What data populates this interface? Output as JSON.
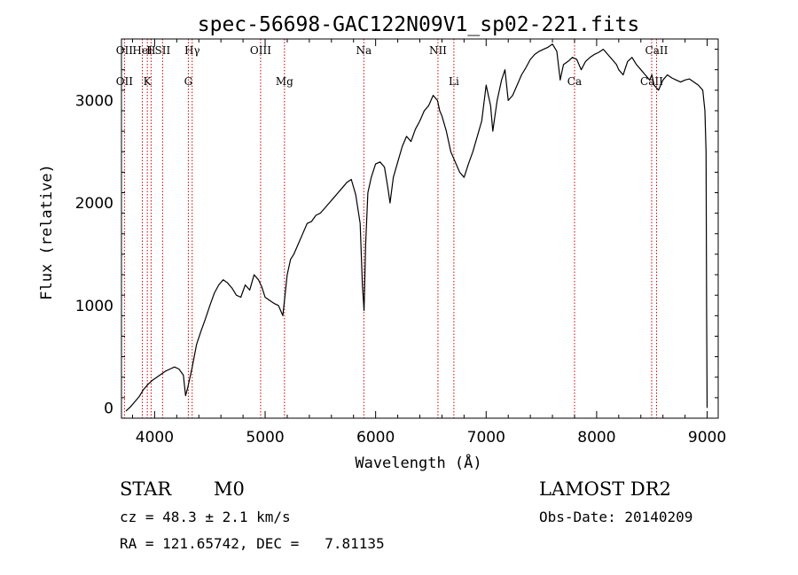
{
  "chart_data": {
    "type": "line",
    "title": "spec-56698-GAC122N09V1_sp02-221.fits",
    "xlabel": "Wavelength (Å)",
    "ylabel": "Flux (relative)",
    "xlim": [
      3700,
      9100
    ],
    "ylim": [
      -100,
      3600
    ],
    "x_ticks": [
      4000,
      5000,
      6000,
      7000,
      8000,
      9000
    ],
    "y_ticks": [
      0,
      1000,
      2000,
      3000
    ],
    "line_color": "#000000",
    "marker_color": "#cc0000",
    "series": [
      {
        "x": [
          3740,
          3780,
          3820,
          3860,
          3900,
          3940,
          3980,
          4020,
          4060,
          4100,
          4140,
          4180,
          4220,
          4260,
          4280,
          4300,
          4340,
          4380,
          4420,
          4460,
          4500,
          4540,
          4580,
          4620,
          4660,
          4700,
          4740,
          4780,
          4820,
          4860,
          4900,
          4940,
          4970,
          5000,
          5040,
          5080,
          5120,
          5160,
          5200,
          5230,
          5260,
          5300,
          5340,
          5380,
          5420,
          5460,
          5500,
          5540,
          5580,
          5620,
          5660,
          5700,
          5740,
          5780,
          5820,
          5860,
          5880,
          5895,
          5910,
          5930,
          5960,
          6000,
          6040,
          6080,
          6110,
          6130,
          6160,
          6200,
          6240,
          6280,
          6320,
          6360,
          6400,
          6440,
          6480,
          6520,
          6560,
          6580,
          6600,
          6640,
          6680,
          6720,
          6760,
          6800,
          6840,
          6880,
          6920,
          6960,
          7000,
          7040,
          7060,
          7080,
          7100,
          7140,
          7170,
          7200,
          7240,
          7280,
          7320,
          7360,
          7400,
          7440,
          7480,
          7520,
          7560,
          7600,
          7640,
          7670,
          7700,
          7740,
          7780,
          7820,
          7860,
          7900,
          7940,
          7980,
          8020,
          8060,
          8100,
          8140,
          8180,
          8200,
          8240,
          8280,
          8320,
          8360,
          8400,
          8440,
          8480,
          8500,
          8520,
          8560,
          8600,
          8640,
          8680,
          8720,
          8760,
          8800,
          8840,
          8880,
          8920,
          8960,
          8980,
          8990,
          8995,
          9000
        ],
        "values": [
          -30,
          10,
          60,
          110,
          180,
          230,
          270,
          300,
          330,
          360,
          380,
          400,
          380,
          320,
          120,
          200,
          400,
          620,
          750,
          870,
          1000,
          1120,
          1200,
          1250,
          1220,
          1170,
          1100,
          1080,
          1200,
          1150,
          1300,
          1250,
          1180,
          1080,
          1050,
          1020,
          1000,
          900,
          1300,
          1450,
          1500,
          1600,
          1700,
          1800,
          1820,
          1880,
          1900,
          1950,
          2000,
          2050,
          2100,
          2150,
          2200,
          2230,
          2080,
          1800,
          1200,
          950,
          1600,
          2100,
          2250,
          2380,
          2400,
          2350,
          2150,
          2000,
          2250,
          2400,
          2550,
          2650,
          2600,
          2720,
          2800,
          2900,
          2950,
          3050,
          3000,
          2900,
          2850,
          2700,
          2500,
          2400,
          2300,
          2250,
          2380,
          2500,
          2650,
          2800,
          3150,
          2950,
          2700,
          2850,
          3000,
          3200,
          3300,
          3000,
          3050,
          3150,
          3250,
          3320,
          3400,
          3450,
          3480,
          3500,
          3520,
          3550,
          3480,
          3200,
          3350,
          3380,
          3420,
          3400,
          3300,
          3380,
          3420,
          3450,
          3470,
          3500,
          3450,
          3400,
          3350,
          3300,
          3250,
          3380,
          3420,
          3350,
          3300,
          3250,
          3200,
          3250,
          3150,
          3100,
          3200,
          3250,
          3220,
          3200,
          3180,
          3200,
          3210,
          3180,
          3150,
          3100,
          2900,
          2500,
          1000,
          0
        ]
      }
    ],
    "lines": [
      {
        "x": 3727,
        "top": "OII",
        "bottom": "OII"
      },
      {
        "x": 3889,
        "top": "HeI",
        "bottom": ""
      },
      {
        "x": 3934,
        "top": "",
        "bottom": "K"
      },
      {
        "x": 3968,
        "top": "H",
        "bottom": ""
      },
      {
        "x": 4072,
        "top": "SII",
        "bottom": ""
      },
      {
        "x": 4305,
        "top": "",
        "bottom": "G"
      },
      {
        "x": 4340,
        "top": "Hγ",
        "bottom": ""
      },
      {
        "x": 4959,
        "top": "OIII",
        "bottom": ""
      },
      {
        "x": 5175,
        "top": "",
        "bottom": "Mg"
      },
      {
        "x": 5893,
        "top": "Na",
        "bottom": ""
      },
      {
        "x": 6564,
        "top": "NII",
        "bottom": ""
      },
      {
        "x": 6708,
        "top": "",
        "bottom": "Li"
      },
      {
        "x": 7800,
        "top": "",
        "bottom": "Ca"
      },
      {
        "x": 8498,
        "top": "",
        "bottom": "CaII"
      },
      {
        "x": 8542,
        "top": "CaII",
        "bottom": ""
      }
    ]
  },
  "info": {
    "object_class": "STAR",
    "subclass": "M0",
    "survey": "LAMOST DR2",
    "cz": "cz = 48.3 ± 2.1 km/s",
    "obs_date": "Obs-Date: 20140209",
    "coords": "RA = 121.65742, DEC =   7.81135"
  }
}
